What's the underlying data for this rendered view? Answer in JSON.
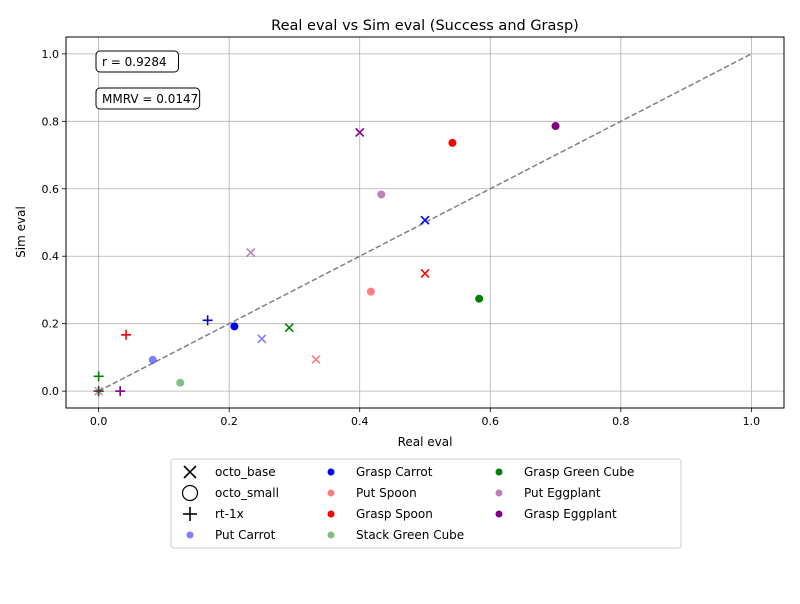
{
  "chart_data": {
    "type": "scatter",
    "title": "Real eval vs Sim eval (Success and Grasp)",
    "xlabel": "Real eval",
    "ylabel": "Sim eval",
    "xlim": [
      -0.05,
      1.05
    ],
    "ylim": [
      -0.05,
      1.05
    ],
    "xticks": [
      0.0,
      0.2,
      0.4,
      0.6,
      0.8,
      1.0
    ],
    "yticks": [
      0.0,
      0.2,
      0.4,
      0.6,
      0.8,
      1.0
    ],
    "tick_labels": [
      "0.0",
      "0.2",
      "0.4",
      "0.6",
      "0.8",
      "1.0"
    ],
    "grid": true,
    "reference_line": {
      "x": [
        0,
        1
      ],
      "y": [
        0,
        1
      ],
      "style": "dashed",
      "color": "#808080"
    },
    "annotations": [
      "r = 0.9284",
      "MMRV = 0.0147"
    ],
    "legend_position": "below",
    "model_legend": [
      {
        "marker": "x",
        "label": "octo_base"
      },
      {
        "marker": "circle-open",
        "label": "octo_small"
      },
      {
        "marker": "plus",
        "label": "rt-1x"
      }
    ],
    "task_legend": [
      {
        "label": "Put Carrot",
        "color": "#0000ff",
        "alpha": 0.5
      },
      {
        "label": "Grasp Carrot",
        "color": "#0000ff",
        "alpha": 1.0
      },
      {
        "label": "Put Spoon",
        "color": "#ff0000",
        "alpha": 0.5
      },
      {
        "label": "Grasp Spoon",
        "color": "#ff0000",
        "alpha": 1.0
      },
      {
        "label": "Stack Green Cube",
        "color": "#008000",
        "alpha": 0.5
      },
      {
        "label": "Grasp Green Cube",
        "color": "#008000",
        "alpha": 1.0
      },
      {
        "label": "Put Eggplant",
        "color": "#800080",
        "alpha": 0.5
      },
      {
        "label": "Grasp Eggplant",
        "color": "#800080",
        "alpha": 1.0
      }
    ],
    "series": [
      {
        "task": "Put Carrot",
        "model": "octo_base",
        "x": 0.25,
        "y": 0.155
      },
      {
        "task": "Put Carrot",
        "model": "octo_small",
        "x": 0.083,
        "y": 0.093
      },
      {
        "task": "Put Carrot",
        "model": "rt-1x",
        "x": 0.0,
        "y": 0.0
      },
      {
        "task": "Grasp Carrot",
        "model": "octo_base",
        "x": 0.5,
        "y": 0.507
      },
      {
        "task": "Grasp Carrot",
        "model": "octo_small",
        "x": 0.208,
        "y": 0.192
      },
      {
        "task": "Grasp Carrot",
        "model": "rt-1x",
        "x": 0.167,
        "y": 0.21
      },
      {
        "task": "Put Spoon",
        "model": "octo_base",
        "x": 0.333,
        "y": 0.094
      },
      {
        "task": "Put Spoon",
        "model": "octo_small",
        "x": 0.417,
        "y": 0.295
      },
      {
        "task": "Put Spoon",
        "model": "rt-1x",
        "x": 0.0,
        "y": 0.0
      },
      {
        "task": "Grasp Spoon",
        "model": "octo_base",
        "x": 0.5,
        "y": 0.349
      },
      {
        "task": "Grasp Spoon",
        "model": "octo_small",
        "x": 0.542,
        "y": 0.736
      },
      {
        "task": "Grasp Spoon",
        "model": "rt-1x",
        "x": 0.042,
        "y": 0.167
      },
      {
        "task": "Stack Green Cube",
        "model": "octo_base",
        "x": 0.0,
        "y": 0.0
      },
      {
        "task": "Stack Green Cube",
        "model": "octo_small",
        "x": 0.125,
        "y": 0.025
      },
      {
        "task": "Stack Green Cube",
        "model": "rt-1x",
        "x": 0.0,
        "y": 0.0
      },
      {
        "task": "Grasp Green Cube",
        "model": "octo_base",
        "x": 0.292,
        "y": 0.188
      },
      {
        "task": "Grasp Green Cube",
        "model": "octo_small",
        "x": 0.583,
        "y": 0.274
      },
      {
        "task": "Grasp Green Cube",
        "model": "rt-1x",
        "x": 0.0,
        "y": 0.044
      },
      {
        "task": "Put Eggplant",
        "model": "octo_base",
        "x": 0.233,
        "y": 0.411
      },
      {
        "task": "Put Eggplant",
        "model": "octo_small",
        "x": 0.433,
        "y": 0.583
      },
      {
        "task": "Put Eggplant",
        "model": "rt-1x",
        "x": 0.0,
        "y": 0.0
      },
      {
        "task": "Grasp Eggplant",
        "model": "octo_base",
        "x": 0.4,
        "y": 0.767
      },
      {
        "task": "Grasp Eggplant",
        "model": "octo_small",
        "x": 0.7,
        "y": 0.786
      },
      {
        "task": "Grasp Eggplant",
        "model": "rt-1x",
        "x": 0.033,
        "y": 0.0
      }
    ]
  }
}
